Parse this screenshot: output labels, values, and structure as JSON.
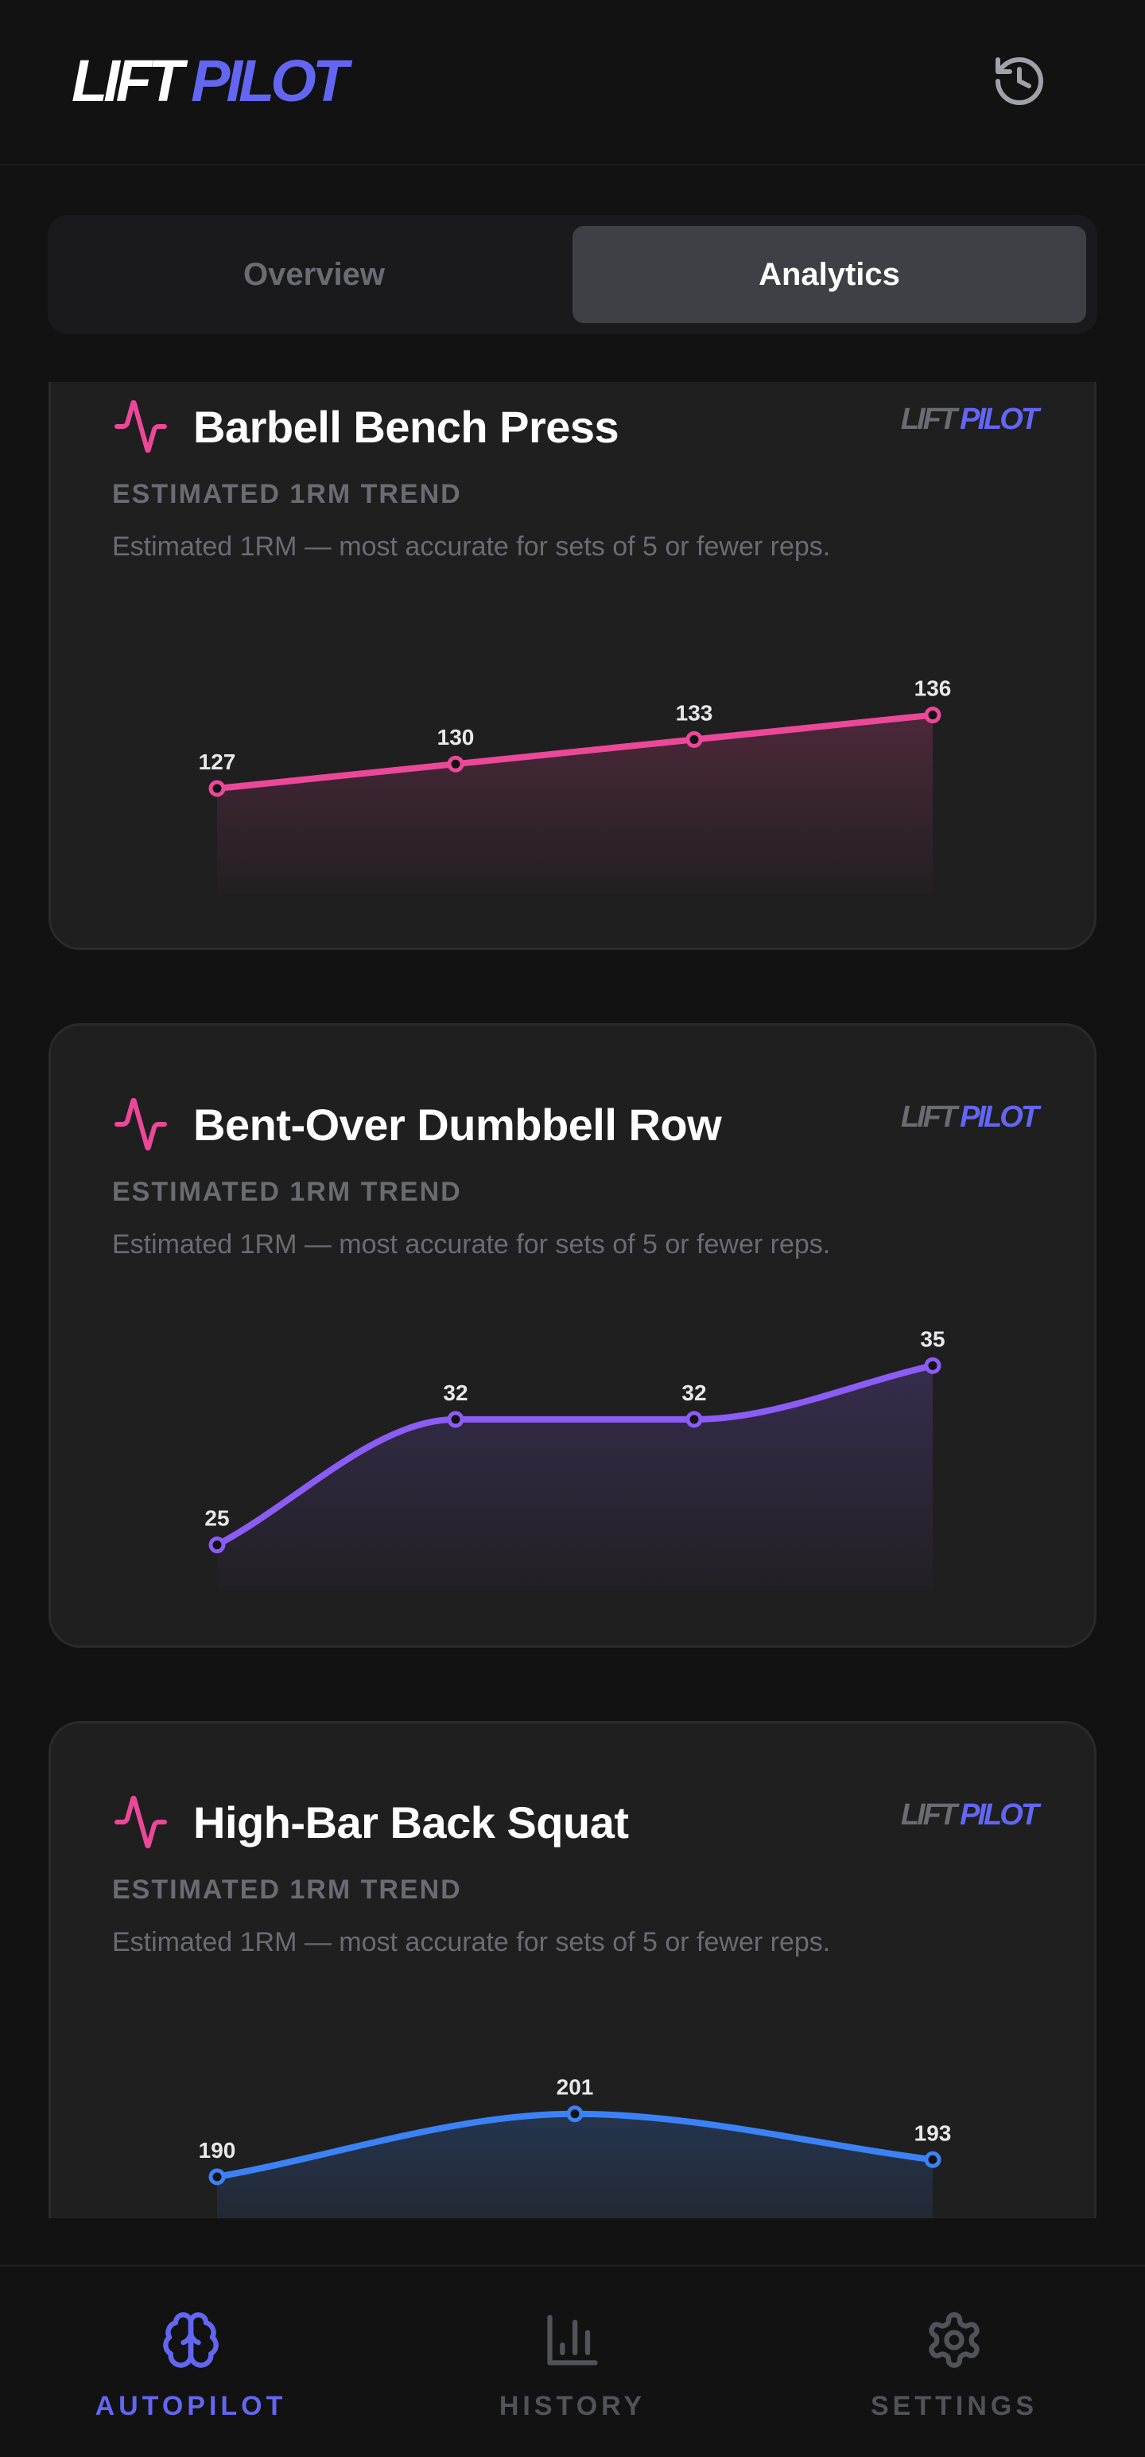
{
  "app": {
    "logo_part1": "LIFT",
    "logo_part2": "PILOT",
    "history_icon": "history-clock-icon"
  },
  "tabs": [
    {
      "label": "Overview",
      "active": false
    },
    {
      "label": "Analytics",
      "active": true
    }
  ],
  "colors": {
    "accent": "#6366f1",
    "pulse_icon": "#ec4899",
    "bench": "#ec4899",
    "row": "#8b5cf6",
    "squat": "#3b82f6",
    "muted": "#6b6b73"
  },
  "cards": [
    {
      "title": "Barbell Bench Press",
      "subtitle": "ESTIMATED 1RM TREND",
      "description": "Estimated 1RM — most accurate for sets of 5 or fewer reps.",
      "logo_part1": "LIFT",
      "logo_part2": "PILOT",
      "icon": "pulse-icon"
    },
    {
      "title": "Bent-Over Dumbbell Row",
      "subtitle": "ESTIMATED 1RM TREND",
      "description": "Estimated 1RM — most accurate for sets of 5 or fewer reps.",
      "logo_part1": "LIFT",
      "logo_part2": "PILOT",
      "icon": "pulse-icon"
    },
    {
      "title": "High-Bar Back Squat",
      "subtitle": "ESTIMATED 1RM TREND",
      "description": "Estimated 1RM — most accurate for sets of 5 or fewer reps.",
      "logo_part1": "LIFT",
      "logo_part2": "PILOT",
      "icon": "pulse-icon"
    }
  ],
  "chart_data": [
    {
      "type": "area",
      "title": "Barbell Bench Press",
      "subtitle": "ESTIMATED 1RM TREND",
      "xlabel": "",
      "ylabel": "",
      "grid": false,
      "curve": "linear",
      "color": "#ec4899",
      "values": [
        127,
        130,
        133,
        136
      ],
      "ylim": [
        115.2,
        146.4
      ]
    },
    {
      "type": "area",
      "title": "Bent-Over Dumbbell Row",
      "subtitle": "ESTIMATED 1RM TREND",
      "xlabel": "",
      "ylabel": "",
      "grid": false,
      "curve": "monotone",
      "color": "#8b5cf6",
      "values": [
        25,
        32,
        32,
        35
      ],
      "ylim": [
        22.9,
        37.1
      ]
    },
    {
      "type": "area",
      "title": "High-Bar Back Squat",
      "subtitle": "ESTIMATED 1RM TREND",
      "xlabel": "",
      "ylabel": "",
      "grid": false,
      "curve": "monotone",
      "color": "#3b82f6",
      "values": [
        190,
        201,
        193
      ],
      "ylim": [
        171.9,
        216.4
      ]
    }
  ],
  "bottom_nav": [
    {
      "label": "AUTOPILOT",
      "icon": "brain-icon",
      "active": true
    },
    {
      "label": "HISTORY",
      "icon": "bar-chart-icon",
      "active": false
    },
    {
      "label": "SETTINGS",
      "icon": "gear-icon",
      "active": false
    }
  ]
}
